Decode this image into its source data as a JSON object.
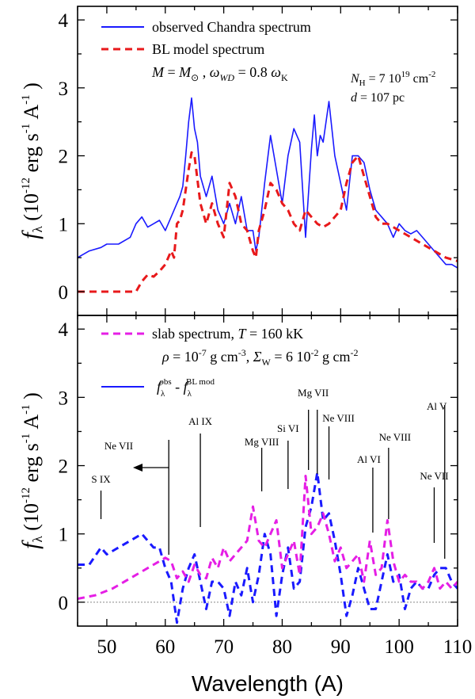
{
  "chart_data": [
    {
      "type": "line",
      "id": "top",
      "xlim": [
        45,
        110
      ],
      "ylim": [
        -0.35,
        4.2
      ],
      "yticks": [
        0,
        1,
        2,
        3,
        4
      ],
      "ylabel": {
        "symbol": "f",
        "sub": "λ",
        "text": "(10",
        "exp": "-12",
        "units": "erg s",
        "exp2": "-1",
        "units2": " A",
        "exp3": "-1",
        "close": ")"
      },
      "legend": [
        {
          "label": "observed Chandra spectrum",
          "color": "#1a1aff",
          "style": "solid"
        },
        {
          "label": "BL model spectrum",
          "color": "#e8191b",
          "style": "dashed"
        }
      ],
      "annotations": {
        "params": "M = M⊙ , ωWD = 0.8 ωK",
        "nh": "NH = 7 10^19 cm^-2",
        "distance": "d = 107 pc"
      },
      "series": [
        {
          "name": "observed Chandra spectrum",
          "color": "#1a1aff",
          "x": [
            45,
            47,
            49,
            50,
            52,
            54,
            55,
            56,
            57,
            58,
            59,
            60,
            61,
            62,
            62.5,
            63,
            63.5,
            64,
            64.5,
            65,
            65.5,
            66,
            67,
            68,
            69,
            70,
            71,
            72,
            73,
            74,
            75,
            75.5,
            76,
            77,
            78,
            79,
            80,
            81,
            82,
            83,
            84,
            85,
            85.5,
            86,
            86.5,
            87,
            88,
            89,
            90,
            91,
            92,
            93,
            94,
            95,
            96,
            97,
            98,
            99,
            100,
            101,
            102,
            103,
            104,
            105,
            106,
            107,
            108,
            109,
            110
          ],
          "y": [
            0.5,
            0.6,
            0.65,
            0.7,
            0.7,
            0.8,
            1.0,
            1.1,
            0.95,
            1.0,
            1.05,
            0.9,
            1.1,
            1.3,
            1.4,
            1.55,
            2.0,
            2.5,
            2.85,
            2.4,
            2.2,
            1.7,
            1.4,
            1.7,
            1.2,
            1.0,
            1.3,
            1.0,
            1.4,
            0.9,
            0.9,
            0.6,
            0.8,
            1.6,
            2.3,
            1.8,
            1.3,
            2.0,
            2.4,
            2.2,
            0.8,
            2.1,
            2.6,
            2.0,
            2.3,
            2.2,
            2.8,
            2.0,
            1.6,
            1.2,
            2.0,
            2.0,
            1.9,
            1.5,
            1.2,
            1.1,
            1.0,
            0.8,
            1.0,
            0.9,
            0.85,
            0.9,
            0.8,
            0.7,
            0.6,
            0.5,
            0.4,
            0.4,
            0.35
          ]
        },
        {
          "name": "BL model spectrum",
          "color": "#e8191b",
          "x": [
            45,
            50,
            55,
            56,
            57,
            58,
            59,
            60,
            61,
            61.5,
            62,
            62.5,
            63,
            63.5,
            64,
            64.5,
            65,
            66,
            67,
            68,
            69,
            70,
            71,
            72,
            73,
            74,
            75,
            75.5,
            76,
            77,
            78,
            79,
            80,
            81,
            82,
            83,
            84,
            85,
            86,
            87,
            88,
            89,
            90,
            91,
            92,
            93,
            94,
            95,
            96,
            97,
            98,
            100,
            102,
            104,
            106,
            108,
            110
          ],
          "y": [
            0,
            0,
            0,
            0.15,
            0.25,
            0.22,
            0.3,
            0.4,
            0.6,
            0.5,
            1.0,
            1.05,
            1.2,
            1.5,
            1.8,
            2.05,
            2.0,
            1.3,
            1.0,
            1.3,
            1.0,
            0.8,
            1.6,
            1.4,
            1.0,
            0.9,
            0.6,
            0.5,
            0.9,
            1.2,
            1.6,
            1.5,
            1.3,
            1.2,
            1.0,
            0.9,
            1.2,
            1.1,
            1.0,
            0.95,
            1.0,
            1.1,
            1.2,
            1.6,
            1.9,
            2.0,
            1.7,
            1.4,
            1.1,
            1.0,
            1.0,
            0.9,
            0.8,
            0.7,
            0.6,
            0.5,
            0.45
          ]
        }
      ]
    },
    {
      "type": "line",
      "id": "bottom",
      "xlim": [
        45,
        110
      ],
      "ylim": [
        -0.35,
        4.2
      ],
      "xticks": [
        50,
        60,
        70,
        80,
        90,
        100,
        110
      ],
      "yticks": [
        0,
        1,
        2,
        3,
        4
      ],
      "xlabel": "Wavelength (A)",
      "ylabel": {
        "symbol": "f",
        "sub": "λ",
        "text": "(10",
        "exp": "-12",
        "units": "erg s",
        "exp2": "-1",
        "units2": " A",
        "exp3": "-1",
        "close": ")"
      },
      "legend": [
        {
          "label": "slab spectrum, T = 160 kK",
          "color": "#e51ee5",
          "style": "dashed"
        },
        {
          "label": "ρ = 10^-7 g cm^-3, ΣW = 6 10^-2 g cm^-2",
          "color": "none",
          "style": "none"
        },
        {
          "label": "fλ obs - fλ BL mod",
          "color": "#1a1aff",
          "style": "solid"
        }
      ],
      "lines": [
        {
          "label": "S IX",
          "x": 49
        },
        {
          "label": "Ne VII",
          "x": 60.6,
          "arrow": true
        },
        {
          "label": "Al IX",
          "x": 66
        },
        {
          "label": "Mg VIII",
          "x": 76.5
        },
        {
          "label": "Si VI",
          "x": 81
        },
        {
          "label": "Mg VII",
          "x": 84.5
        },
        {
          "label": "Mg VII",
          "x": 86
        },
        {
          "label": "Ne VIII",
          "x": 88
        },
        {
          "label": "Al VI",
          "x": 95.5
        },
        {
          "label": "Ne VIII",
          "x": 98.2
        },
        {
          "label": "Ne VII",
          "x": 106
        },
        {
          "label": "Al V",
          "x": 107.8
        }
      ],
      "series": [
        {
          "name": "observed minus BL model",
          "color": "#1a1aff",
          "x": [
            45,
            47,
            49,
            50,
            52,
            54,
            56,
            57,
            58,
            59,
            60,
            61,
            62,
            63,
            64,
            65,
            66,
            67,
            68,
            69,
            70,
            71,
            72,
            73,
            74,
            75,
            76,
            77,
            78,
            79,
            80,
            81,
            82,
            83,
            84,
            85,
            86,
            87,
            88,
            89,
            90,
            91,
            92,
            93,
            94,
            95,
            96,
            97,
            98,
            99,
            100,
            101,
            102,
            103,
            104,
            105,
            106,
            107,
            108,
            109,
            110
          ],
          "y": [
            0.55,
            0.55,
            0.8,
            0.7,
            0.8,
            0.9,
            1.0,
            0.9,
            0.8,
            0.8,
            0.5,
            0.3,
            -0.3,
            0.2,
            0.5,
            0.7,
            0.3,
            -0.1,
            0.3,
            0.3,
            0.2,
            -0.2,
            0.3,
            0.1,
            0.5,
            0.0,
            0.4,
            1.0,
            0.7,
            -0.2,
            0.4,
            0.8,
            0.2,
            0.3,
            1.1,
            1.4,
            1.9,
            1.2,
            1.3,
            0.9,
            0.4,
            -0.2,
            0.1,
            0.5,
            0.2,
            -0.1,
            -0.1,
            0.3,
            0.7,
            0.3,
            0.4,
            -0.1,
            0.2,
            0.3,
            0.2,
            0.2,
            0.4,
            0.5,
            0.5,
            0.3,
            0.2
          ]
        },
        {
          "name": "slab spectrum, T = 160 kK",
          "color": "#e51ee5",
          "x": [
            45,
            48,
            51,
            54,
            56,
            58,
            60,
            61,
            62,
            63,
            64,
            65,
            66,
            67,
            68,
            69,
            70,
            71,
            72,
            73,
            74,
            75,
            76,
            77,
            78,
            79,
            80,
            81,
            82,
            83,
            84,
            85,
            86,
            87,
            88,
            89,
            90,
            91,
            92,
            93,
            94,
            95,
            96,
            97,
            98,
            99,
            100,
            101,
            102,
            103,
            104,
            105,
            106,
            107,
            108,
            109,
            110
          ],
          "y": [
            0.05,
            0.1,
            0.2,
            0.35,
            0.45,
            0.55,
            0.65,
            0.6,
            0.35,
            0.45,
            0.3,
            0.55,
            0.4,
            0.35,
            0.65,
            0.5,
            0.8,
            0.6,
            0.7,
            0.8,
            0.9,
            1.4,
            0.9,
            0.8,
            1.0,
            1.2,
            0.5,
            0.7,
            0.9,
            0.4,
            1.85,
            1.0,
            1.1,
            1.3,
            1.0,
            0.6,
            0.8,
            0.5,
            0.6,
            0.7,
            0.3,
            0.9,
            0.4,
            0.5,
            1.2,
            0.6,
            0.3,
            0.4,
            0.3,
            0.3,
            0.2,
            0.3,
            0.5,
            0.2,
            0.3,
            0.2,
            0.3
          ]
        }
      ]
    }
  ]
}
